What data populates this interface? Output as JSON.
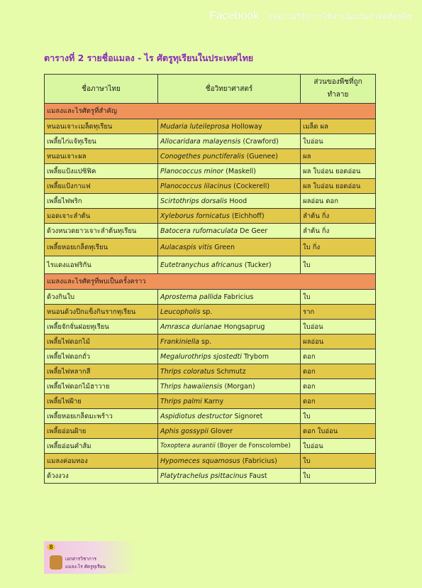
{
  "header": {
    "brand": "Facebook :",
    "group": "กลุ่มงานวิจัยการใช้สารป้องกันกำจัดศัตรูพืช"
  },
  "title": "ตารางที่ 2 รายชื่อแมลง - ไร ศัตรูทุเรียนในประเทศไทย",
  "table": {
    "headers": [
      "ชื่อภาษาไทย",
      "ชื่อวิทยาศาสตร์",
      "ส่วนของพืชที่ถูก\nทำลาย"
    ],
    "sections": [
      {
        "title": "แมลงและไรศัตรูที่สำคัญ",
        "rows": [
          {
            "thai": "หนอนเจาะเมล็ดทุเรียน",
            "sci": "Mudaria luteileprosa",
            "author": "Holloway",
            "part": "เมล็ด ผล",
            "hl": true
          },
          {
            "thai": "เพลี้ยไก่แจ้ทุเรียน",
            "sci": "Allocaridara malayensis",
            "author": "(Crawford)",
            "part": "ใบอ่อน",
            "hl": false
          },
          {
            "thai": "หนอนเจาะผล",
            "sci": "Conogethes punctiferalis",
            "author": "(Guenee)",
            "part": "ผล",
            "hl": true
          },
          {
            "thai": "เพลี้ยแป้งแปซิฟิค",
            "sci": "Planococcus minor",
            "author": "(Maskell)",
            "part": "ผล ใบอ่อน ยอดอ่อน",
            "hl": false
          },
          {
            "thai": "เพลี้ยแป้งกาแฟ",
            "sci": "Planococcus lilacinus",
            "author": "(Cockerell)",
            "part": "ผล ใบอ่อน ยอดอ่อน",
            "hl": true
          },
          {
            "thai": "เพลี้ยไฟพริก",
            "sci": "Scirtothrips dorsalis",
            "author": "Hood",
            "part": "ผลอ่อน ดอก",
            "hl": false
          },
          {
            "thai": "มอดเจาะลำต้น",
            "sci": "Xyleborus fornicatus",
            "author": "(Eichhoff)",
            "part": "ลำต้น กิ่ง",
            "hl": true
          },
          {
            "thai": "ด้วงหนวดยาวเจาะลำต้นทุเรียน",
            "sci": "Batocera rufomaculata",
            "author": "De Geer",
            "part": "ลำต้น กิ่ง",
            "hl": false
          },
          {
            "thai": "เพลี้ยหอยเกล็ดทุเรียน",
            "sci": "Aulacaspis vitis",
            "author": "Green",
            "part": "ใบ กิ่ง",
            "hl": true,
            "tall": true
          },
          {
            "thai": "ไรแดงแอฟริกัน",
            "sci": "Eutetranychus africanus",
            "author": "(Tucker)",
            "part": "ใบ",
            "hl": false,
            "tall": true
          }
        ]
      },
      {
        "title": "แมลงและไรศัตรูที่พบเป็นครั้งคราว",
        "rows": [
          {
            "thai": "ด้วงกินใบ",
            "sci": "Aprostema pallida",
            "author": "Fabricius",
            "part": "ใบ",
            "hl": false
          },
          {
            "thai": "หนอนด้วงปีกแข็งกินรากทุเรียน",
            "sci": "Leucopholis",
            "author": "sp.",
            "part": "ราก",
            "hl": true
          },
          {
            "thai": "เพลี้ยจักจั่นฝอยทุเรียน",
            "sci": "Amrasca durianae",
            "author": "Hongsaprug",
            "part": "ใบอ่อน",
            "hl": false
          },
          {
            "thai": "เพลี้ยไฟดอกไม้",
            "sci": "Frankiniella",
            "author": "sp.",
            "part": "ผลอ่อน",
            "hl": true
          },
          {
            "thai": "เพลี้ยไฟดอกถั่ว",
            "sci": "Megalurothrips sjostedti",
            "author": "Trybom",
            "part": "ดอก",
            "hl": false
          },
          {
            "thai": "เพลี้ยไฟหลากสี",
            "sci": "Thrips coloratus",
            "author": "Schmutz",
            "part": "ดอก",
            "hl": true
          },
          {
            "thai": "เพลี้ยไฟดอกไม้ฮาวาย",
            "sci": "Thrips hawaiiensis",
            "author": "(Morgan)",
            "part": "ดอก",
            "hl": false
          },
          {
            "thai": "เพลี้ยไฟฝ้าย",
            "sci": "Thrips palmi",
            "author": "Karny",
            "part": "ดอก",
            "hl": true
          },
          {
            "thai": "เพลี้ยหอยเกล็ดมะพร้าว",
            "sci": "Aspidiotus destructor",
            "author": "Signoret",
            "part": "ใบ",
            "hl": false
          },
          {
            "thai": "เพลี้ยอ่อนฝ้าย",
            "sci": "Aphis gossypii",
            "author": "Glover",
            "part": "ดอก ใบอ่อน",
            "hl": true
          },
          {
            "thai": "เพลี้ยอ่อนคำส้ม",
            "sci": "Toxoptera aurantii",
            "author": "(Boyer de Fonscolombe)",
            "part": "ใบอ่อน",
            "hl": false,
            "small": true
          },
          {
            "thai": "แมลงค่อมทอง",
            "sci": "Hypomeces squamosus",
            "author": "(Fabricius)",
            "part": "ใบ",
            "hl": true
          },
          {
            "thai": "ด้วงงวง",
            "sci": "Platytrachelus psittacinus",
            "author": "Faust",
            "part": "ใบ",
            "hl": false
          }
        ]
      }
    ]
  },
  "footer": {
    "page": "8",
    "line1": "เอกสารวิชาการ",
    "line2": "แมลง-ไร ศัตรูทุเรียน"
  },
  "colors": {
    "page_bg": "#e6fcaa",
    "header_row": "#d8f7a0",
    "section_bg": "#f0935a",
    "highlight_row": "#e3c94a",
    "title": "#8a2bb5"
  }
}
